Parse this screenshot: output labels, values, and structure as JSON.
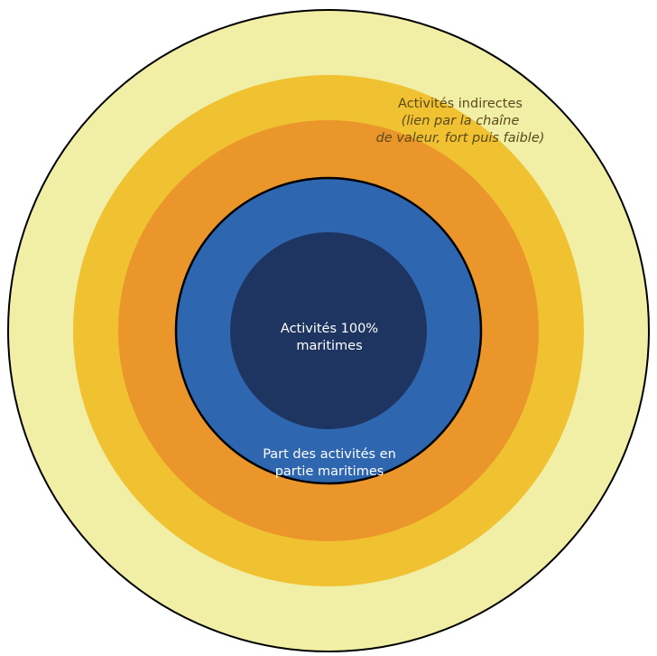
{
  "diagram": {
    "rings": [
      {
        "name": "outer-ring",
        "color": "#f1eea5"
      },
      {
        "name": "yellow-ring",
        "color": "#f0c232"
      },
      {
        "name": "orange-ring",
        "color": "#eb962b"
      },
      {
        "name": "partial-maritime-ring",
        "color": "#2f66b0"
      },
      {
        "name": "core-maritime-circle",
        "color": "#1e3561"
      }
    ],
    "labels": {
      "indirect": {
        "line1": "Activités indirectes",
        "line2": "(lien par la chaîne",
        "line3": "de valeur, fort puis faible)"
      },
      "core": {
        "line1": "Activités 100%",
        "line2": "maritimes"
      },
      "partial": {
        "line1": "Part des activités en",
        "line2": "partie maritimes"
      }
    }
  }
}
